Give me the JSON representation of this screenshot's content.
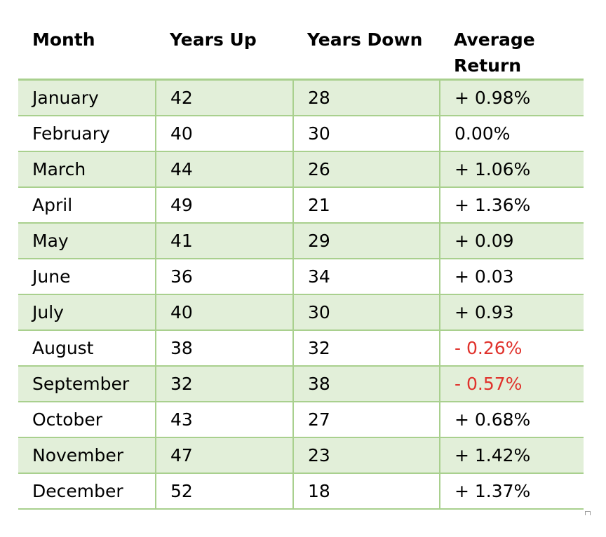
{
  "table": {
    "headers": [
      "Month",
      "Years Up",
      "Years Down",
      "Average Return"
    ],
    "rows": [
      {
        "month": "January",
        "up": "42",
        "down": "28",
        "avg": "+ 0.98%",
        "negative": false
      },
      {
        "month": "February",
        "up": "40",
        "down": "30",
        "avg": "0.00%",
        "negative": false
      },
      {
        "month": "March",
        "up": "44",
        "down": "26",
        "avg": "+ 1.06%",
        "negative": false
      },
      {
        "month": "April",
        "up": "49",
        "down": "21",
        "avg": "+ 1.36%",
        "negative": false
      },
      {
        "month": "May",
        "up": "41",
        "down": "29",
        "avg": "+ 0.09",
        "negative": false
      },
      {
        "month": "June",
        "up": "36",
        "down": "34",
        "avg": "+ 0.03",
        "negative": false
      },
      {
        "month": "July",
        "up": "40",
        "down": "30",
        "avg": "+ 0.93",
        "negative": false
      },
      {
        "month": "August",
        "up": "38",
        "down": "32",
        "avg": "- 0.26%",
        "negative": true
      },
      {
        "month": "September",
        "up": "32",
        "down": "38",
        "avg": "- 0.57%",
        "negative": true
      },
      {
        "month": "October",
        "up": "43",
        "down": "27",
        "avg": "+ 0.68%",
        "negative": false
      },
      {
        "month": "November",
        "up": "47",
        "down": "23",
        "avg": "+ 1.42%",
        "negative": false
      },
      {
        "month": "December",
        "up": "52",
        "down": "18",
        "avg": "+ 1.37%",
        "negative": false
      }
    ]
  },
  "colors": {
    "band": "#e2efd9",
    "border": "#a9d08e",
    "negative": "#e0322c"
  }
}
